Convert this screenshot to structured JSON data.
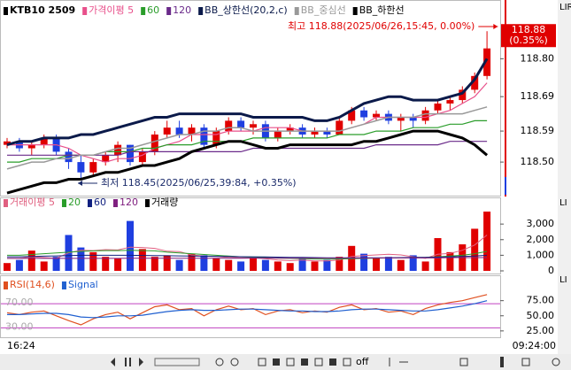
{
  "chart_data": [
    {
      "type": "candlestick",
      "title": "KTB10  2509",
      "up_color": "#e00000",
      "down_color": "#1f3fe0",
      "ohlc": [
        [
          118.55,
          118.57,
          118.54,
          118.56
        ],
        [
          118.56,
          118.57,
          118.53,
          118.54
        ],
        [
          118.54,
          118.56,
          118.52,
          118.55
        ],
        [
          118.55,
          118.58,
          118.54,
          118.57
        ],
        [
          118.57,
          118.58,
          118.52,
          118.53
        ],
        [
          118.53,
          118.54,
          118.48,
          118.5
        ],
        [
          118.5,
          118.52,
          118.45,
          118.47
        ],
        [
          118.47,
          118.51,
          118.46,
          118.5
        ],
        [
          118.5,
          118.53,
          118.49,
          118.52
        ],
        [
          118.52,
          118.56,
          118.5,
          118.55
        ],
        [
          118.55,
          118.55,
          118.49,
          118.5
        ],
        [
          118.5,
          118.54,
          118.49,
          118.53
        ],
        [
          118.53,
          118.59,
          118.52,
          118.58
        ],
        [
          118.58,
          118.62,
          118.57,
          118.6
        ],
        [
          118.6,
          118.62,
          118.57,
          118.58
        ],
        [
          118.58,
          118.61,
          118.56,
          118.6
        ],
        [
          118.6,
          118.61,
          118.54,
          118.55
        ],
        [
          118.55,
          118.6,
          118.54,
          118.59
        ],
        [
          118.59,
          118.63,
          118.58,
          118.62
        ],
        [
          118.62,
          118.63,
          118.59,
          118.6
        ],
        [
          118.6,
          118.62,
          118.58,
          118.61
        ],
        [
          118.61,
          118.62,
          118.56,
          118.57
        ],
        [
          118.57,
          118.6,
          118.56,
          118.59
        ],
        [
          118.59,
          118.61,
          118.58,
          118.6
        ],
        [
          118.6,
          118.61,
          118.57,
          118.58
        ],
        [
          118.58,
          118.6,
          118.57,
          118.59
        ],
        [
          118.59,
          118.6,
          118.57,
          118.58
        ],
        [
          118.58,
          118.63,
          118.58,
          118.62
        ],
        [
          118.62,
          118.66,
          118.61,
          118.65
        ],
        [
          118.65,
          118.66,
          118.62,
          118.63
        ],
        [
          118.63,
          118.65,
          118.62,
          118.64
        ],
        [
          118.64,
          118.65,
          118.61,
          118.62
        ],
        [
          118.62,
          118.64,
          118.59,
          118.63
        ],
        [
          118.63,
          118.64,
          118.6,
          118.62
        ],
        [
          118.62,
          118.66,
          118.61,
          118.65
        ],
        [
          118.65,
          118.68,
          118.64,
          118.67
        ],
        [
          118.67,
          118.69,
          118.65,
          118.68
        ],
        [
          118.68,
          118.72,
          118.67,
          118.71
        ],
        [
          118.71,
          118.76,
          118.7,
          118.75
        ],
        [
          118.75,
          118.88,
          118.74,
          118.83
        ]
      ],
      "lines": [
        {
          "name": "가격이평 5",
          "color": "#e8508b",
          "width": 1.2,
          "values": [
            118.55,
            118.55,
            118.55,
            118.55,
            118.55,
            118.54,
            118.52,
            118.51,
            118.5,
            118.51,
            118.51,
            118.52,
            118.54,
            118.55,
            118.56,
            118.58,
            118.58,
            118.58,
            118.59,
            118.59,
            118.59,
            118.6,
            118.6,
            118.6,
            118.59,
            118.59,
            118.59,
            118.59,
            118.6,
            118.61,
            118.63,
            118.63,
            118.63,
            118.63,
            118.63,
            118.64,
            118.65,
            118.67,
            118.69,
            118.73
          ]
        },
        {
          "name": "60",
          "color": "#2a9d2a",
          "width": 1.2,
          "values": [
            118.5,
            118.5,
            118.51,
            118.51,
            118.51,
            118.52,
            118.52,
            118.52,
            118.53,
            118.53,
            118.53,
            118.54,
            118.54,
            118.55,
            118.55,
            118.55,
            118.56,
            118.56,
            118.56,
            118.56,
            118.57,
            118.57,
            118.57,
            118.57,
            118.57,
            118.57,
            118.57,
            118.58,
            118.58,
            118.58,
            118.59,
            118.59,
            118.59,
            118.6,
            118.6,
            118.6,
            118.61,
            118.61,
            118.62,
            118.62
          ]
        },
        {
          "name": "120",
          "color": "#6a2a8a",
          "width": 1.2,
          "values": [
            118.52,
            118.52,
            118.52,
            118.52,
            118.52,
            118.52,
            118.52,
            118.52,
            118.52,
            118.52,
            118.53,
            118.53,
            118.53,
            118.53,
            118.53,
            118.53,
            118.53,
            118.53,
            118.53,
            118.53,
            118.54,
            118.54,
            118.54,
            118.54,
            118.54,
            118.54,
            118.54,
            118.54,
            118.54,
            118.54,
            118.55,
            118.55,
            118.55,
            118.55,
            118.55,
            118.55,
            118.56,
            118.56,
            118.56,
            118.56
          ]
        },
        {
          "name": "BB_상한선(20,2,c)",
          "color": "#0b1a4a",
          "width": 3,
          "values": [
            118.55,
            118.56,
            118.56,
            118.57,
            118.57,
            118.57,
            118.58,
            118.58,
            118.59,
            118.6,
            118.61,
            118.62,
            118.63,
            118.63,
            118.64,
            118.64,
            118.64,
            118.64,
            118.64,
            118.64,
            118.63,
            118.63,
            118.63,
            118.63,
            118.63,
            118.62,
            118.62,
            118.63,
            118.65,
            118.67,
            118.68,
            118.69,
            118.69,
            118.68,
            118.68,
            118.68,
            118.69,
            118.7,
            118.74,
            118.8
          ]
        },
        {
          "name": "BB_중심선",
          "color": "#999999",
          "width": 1.5,
          "values": [
            118.48,
            118.49,
            118.5,
            118.5,
            118.51,
            118.51,
            118.52,
            118.52,
            118.53,
            118.54,
            118.54,
            118.55,
            118.56,
            118.57,
            118.58,
            118.58,
            118.59,
            118.59,
            118.6,
            118.6,
            118.59,
            118.59,
            118.59,
            118.59,
            118.59,
            118.59,
            118.59,
            118.59,
            118.6,
            118.61,
            118.62,
            118.63,
            118.63,
            118.63,
            118.64,
            118.64,
            118.64,
            118.64,
            118.65,
            118.66
          ]
        },
        {
          "name": "BB_하한선",
          "color": "#000000",
          "width": 3,
          "values": [
            118.41,
            118.42,
            118.43,
            118.44,
            118.44,
            118.45,
            118.45,
            118.46,
            118.47,
            118.47,
            118.48,
            118.49,
            118.49,
            118.5,
            118.51,
            118.53,
            118.54,
            118.55,
            118.56,
            118.56,
            118.55,
            118.54,
            118.54,
            118.55,
            118.55,
            118.55,
            118.55,
            118.55,
            118.55,
            118.56,
            118.56,
            118.57,
            118.58,
            118.59,
            118.59,
            118.59,
            118.58,
            118.57,
            118.55,
            118.52
          ]
        }
      ],
      "ylim": [
        118.4,
        118.95
      ],
      "yticks": [
        {
          "value": 118.5,
          "label": "118.50"
        },
        118.59,
        118.69,
        {
          "value": 118.8,
          "label": "118.80"
        }
      ],
      "current": {
        "price": 118.88,
        "change": "(0.35%)"
      },
      "annotations": {
        "high": "최고 118.88(2025/06/26,15:45, 0.00%)",
        "low": "최저 118.45(2025/06/25,39:84, +0.35%)"
      }
    },
    {
      "type": "bar",
      "name": "거래량",
      "values": [
        500,
        700,
        1300,
        600,
        900,
        2300,
        1500,
        1200,
        900,
        800,
        3200,
        1400,
        900,
        1000,
        700,
        1100,
        1000,
        800,
        700,
        600,
        900,
        700,
        600,
        500,
        800,
        600,
        700,
        900,
        1600,
        1100,
        800,
        900,
        700,
        1000,
        600,
        2100,
        1200,
        1700,
        2700,
        3800
      ],
      "lines": [
        {
          "name": "거래이평 5",
          "color": "#e06080",
          "width": 1,
          "values": [
            800,
            800,
            900,
            850,
            800,
            1160,
            1320,
            1300,
            1360,
            1340,
            1520,
            1500,
            1440,
            1260,
            1240,
            1020,
            940,
            920,
            860,
            840,
            840,
            780,
            700,
            660,
            700,
            640,
            640,
            700,
            920,
            980,
            1020,
            1060,
            1020,
            900,
            800,
            1060,
            1120,
            1320,
            1660,
            2300
          ]
        },
        {
          "name": "20",
          "color": "#2a9d2a",
          "width": 1,
          "values": [
            1000,
            1000,
            1050,
            1100,
            1150,
            1200,
            1250,
            1280,
            1300,
            1300,
            1320,
            1300,
            1280,
            1200,
            1150,
            1100,
            1050,
            1000,
            950,
            900,
            880,
            850,
            820,
            800,
            780,
            760,
            750,
            760,
            780,
            800,
            810,
            830,
            840,
            850,
            860,
            900,
            950,
            1000,
            1100,
            1250
          ]
        },
        {
          "name": "60",
          "color": "#102080",
          "width": 1,
          "values": [
            900,
            900,
            920,
            940,
            960,
            980,
            1000,
            1000,
            1000,
            1000,
            1000,
            990,
            980,
            970,
            960,
            950,
            940,
            930,
            920,
            910,
            900,
            890,
            880,
            870,
            860,
            850,
            840,
            840,
            840,
            840,
            840,
            840,
            850,
            860,
            870,
            880,
            900,
            920,
            950,
            1000
          ]
        },
        {
          "name": "120",
          "color": "#802080",
          "width": 1,
          "values": [
            800,
            800,
            800,
            800,
            800,
            800,
            800,
            800,
            800,
            800,
            810,
            810,
            810,
            810,
            810,
            810,
            810,
            810,
            810,
            810,
            820,
            820,
            820,
            820,
            820,
            820,
            820,
            820,
            820,
            820,
            830,
            830,
            830,
            830,
            830,
            830,
            850,
            850,
            850,
            850
          ]
        }
      ],
      "ylim": [
        0,
        4200
      ],
      "yticks": [
        0,
        {
          "value": 1000,
          "label": "1,000"
        },
        {
          "value": 2000,
          "label": "2,000"
        },
        {
          "value": 3000,
          "label": "3,000"
        }
      ]
    },
    {
      "type": "line",
      "series": [
        {
          "name": "RSI(14,6)",
          "color": "#e05020",
          "values": [
            55,
            52,
            56,
            58,
            50,
            42,
            35,
            45,
            52,
            56,
            45,
            55,
            65,
            68,
            60,
            62,
            50,
            60,
            66,
            60,
            62,
            52,
            58,
            60,
            55,
            58,
            56,
            64,
            68,
            60,
            62,
            56,
            58,
            52,
            62,
            68,
            72,
            75,
            80,
            85
          ]
        },
        {
          "name": "Signal",
          "color": "#2060d0",
          "values": [
            52,
            52,
            53,
            54,
            54,
            52,
            48,
            47,
            48,
            50,
            50,
            51,
            54,
            57,
            59,
            60,
            59,
            59,
            60,
            61,
            61,
            60,
            59,
            58,
            58,
            57,
            57,
            58,
            60,
            61,
            61,
            60,
            59,
            58,
            58,
            60,
            63,
            66,
            70,
            75
          ]
        }
      ],
      "levels": [
        {
          "value": 70,
          "label": "70.00",
          "color": "#c040c0"
        },
        {
          "value": 30,
          "label": "30.00",
          "color": "#c040c0"
        }
      ],
      "ylim": [
        16,
        114
      ],
      "yticks": [
        {
          "value": 25,
          "label": "25.00"
        },
        {
          "value": 50,
          "label": "50.00"
        },
        {
          "value": 75,
          "label": "75.00"
        }
      ]
    }
  ],
  "time_axis": {
    "start": "16:24",
    "end": "09:24:00"
  },
  "ui": {
    "tags": [
      "LIRG",
      "LI",
      "LI"
    ],
    "toolbar_off": "off"
  }
}
